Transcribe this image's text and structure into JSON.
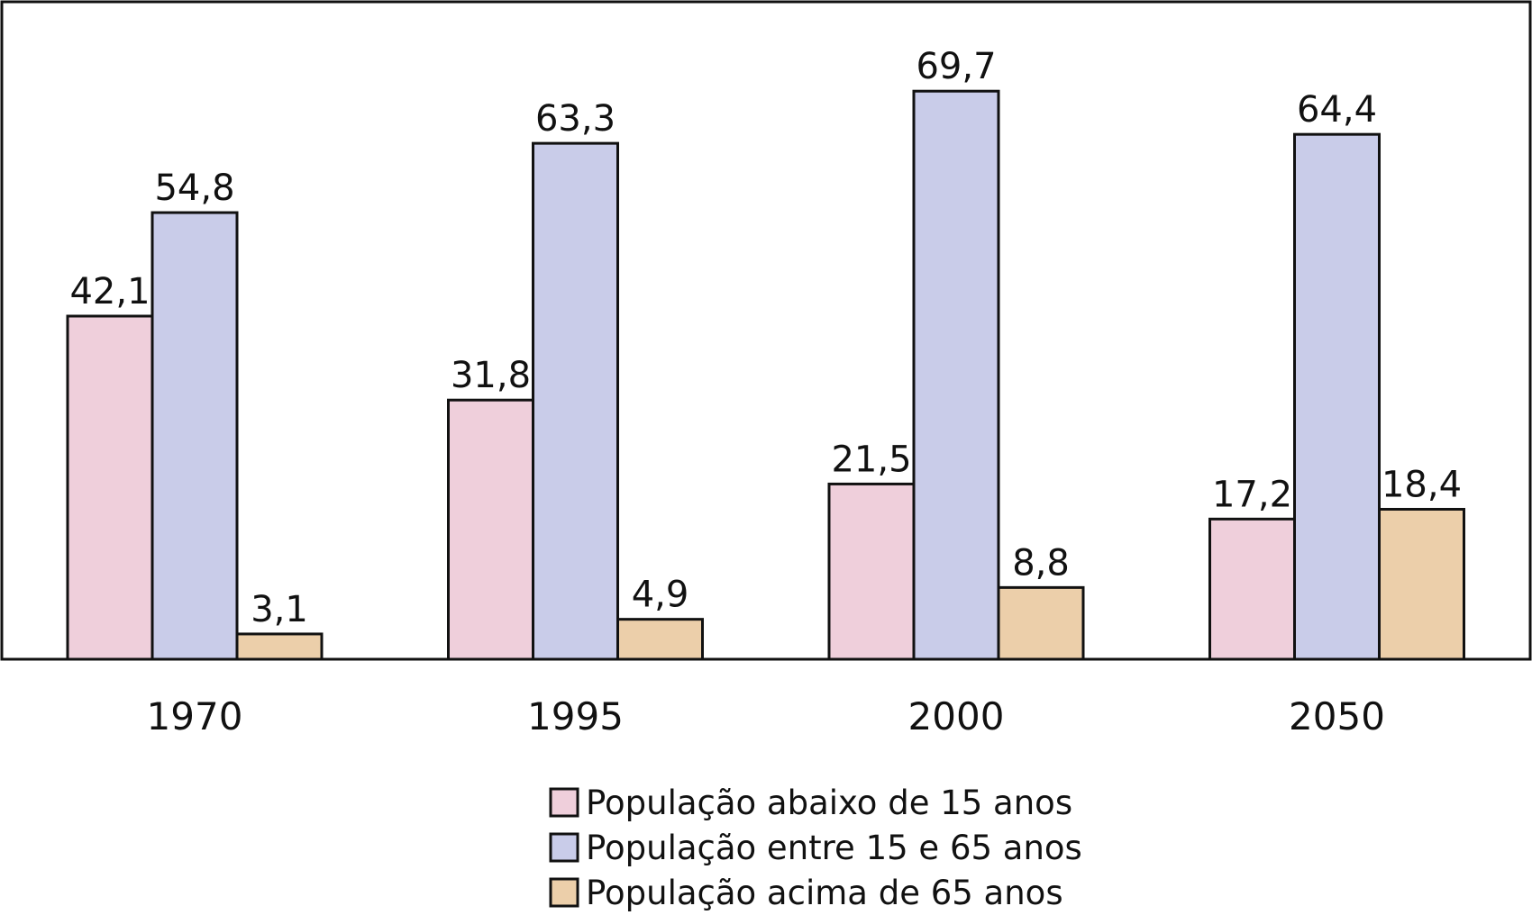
{
  "chart_data": {
    "type": "bar",
    "categories": [
      "1970",
      "1995",
      "2000",
      "2050"
    ],
    "series": [
      {
        "name": "População abaixo de 15 anos",
        "color": "#efcfdb",
        "values": [
          42.1,
          31.8,
          21.5,
          17.2
        ],
        "labels": [
          "42,1",
          "31,8",
          "21,5",
          "17,2"
        ]
      },
      {
        "name": "População entre 15 e 65 anos",
        "color": "#c9cce9",
        "values": [
          54.8,
          63.3,
          69.7,
          64.4
        ],
        "labels": [
          "54,8",
          "63,3",
          "69,7",
          "64,4"
        ]
      },
      {
        "name": "População acima de 65 anos",
        "color": "#eccfaa",
        "values": [
          3.1,
          4.9,
          8.8,
          18.4
        ],
        "labels": [
          "3,1",
          "4,9",
          "8,8",
          "18,4"
        ]
      }
    ],
    "ylim": [
      0,
      80
    ],
    "grid": false,
    "legend_position": "bottom"
  }
}
